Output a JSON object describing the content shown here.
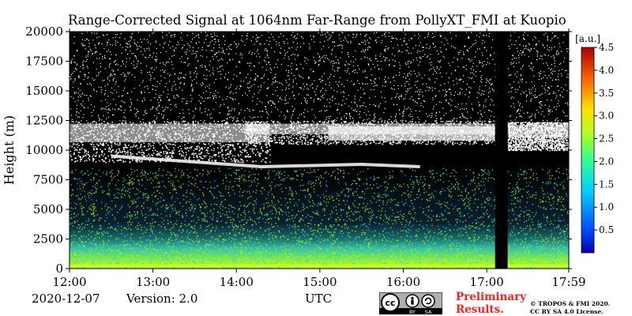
{
  "chart_data": {
    "type": "heatmap",
    "title": "Range-Corrected Signal at 1064nm Far-Range from PollyXT_FMI at Kuopio",
    "ylabel": "Height (m)",
    "xlabel": "UTC",
    "x_ticks": [
      "12:00",
      "13:00",
      "14:00",
      "15:00",
      "16:00",
      "17:00",
      "17:59"
    ],
    "x_range_hours": [
      12.0,
      17.983
    ],
    "y_ticks": [
      0,
      2500,
      5000,
      7500,
      10000,
      12500,
      15000,
      17500,
      20000
    ],
    "ylim": [
      0,
      20000
    ],
    "colorbar": {
      "unit": "[a.u.]",
      "ticks": [
        "0.5",
        "1.0",
        "1.5",
        "2.0",
        "2.5",
        "3.0",
        "3.5",
        "4.0",
        "4.5"
      ],
      "range": [
        0.0,
        4.5
      ],
      "colormap": "jet"
    },
    "features": {
      "no_data_interval_hours": [
        17.1,
        17.25
      ],
      "cloud_layers": [
        {
          "start_h": 12.0,
          "end_h": 14.4,
          "bottom_m": 9000,
          "top_m": 12500
        },
        {
          "start_h": 14.1,
          "end_h": 17.1,
          "bottom_m": 10500,
          "top_m": 12500
        },
        {
          "start_h": 17.25,
          "end_h": 17.983,
          "bottom_m": 10000,
          "top_m": 12400
        }
      ],
      "aerosol_top_m": 8500
    }
  },
  "footer": {
    "date": "2020-12-07",
    "version": "Version: 2.0",
    "utc_label": "UTC",
    "preliminary_line1": "Preliminary",
    "preliminary_line2": "Results.",
    "copyright_line1": "© TROPOS & FMI 2020.",
    "copyright_line2": "CC BY SA 4.0 License.",
    "cc_badge": {
      "cc": "cc",
      "by": "BY",
      "sa": "SA"
    }
  }
}
